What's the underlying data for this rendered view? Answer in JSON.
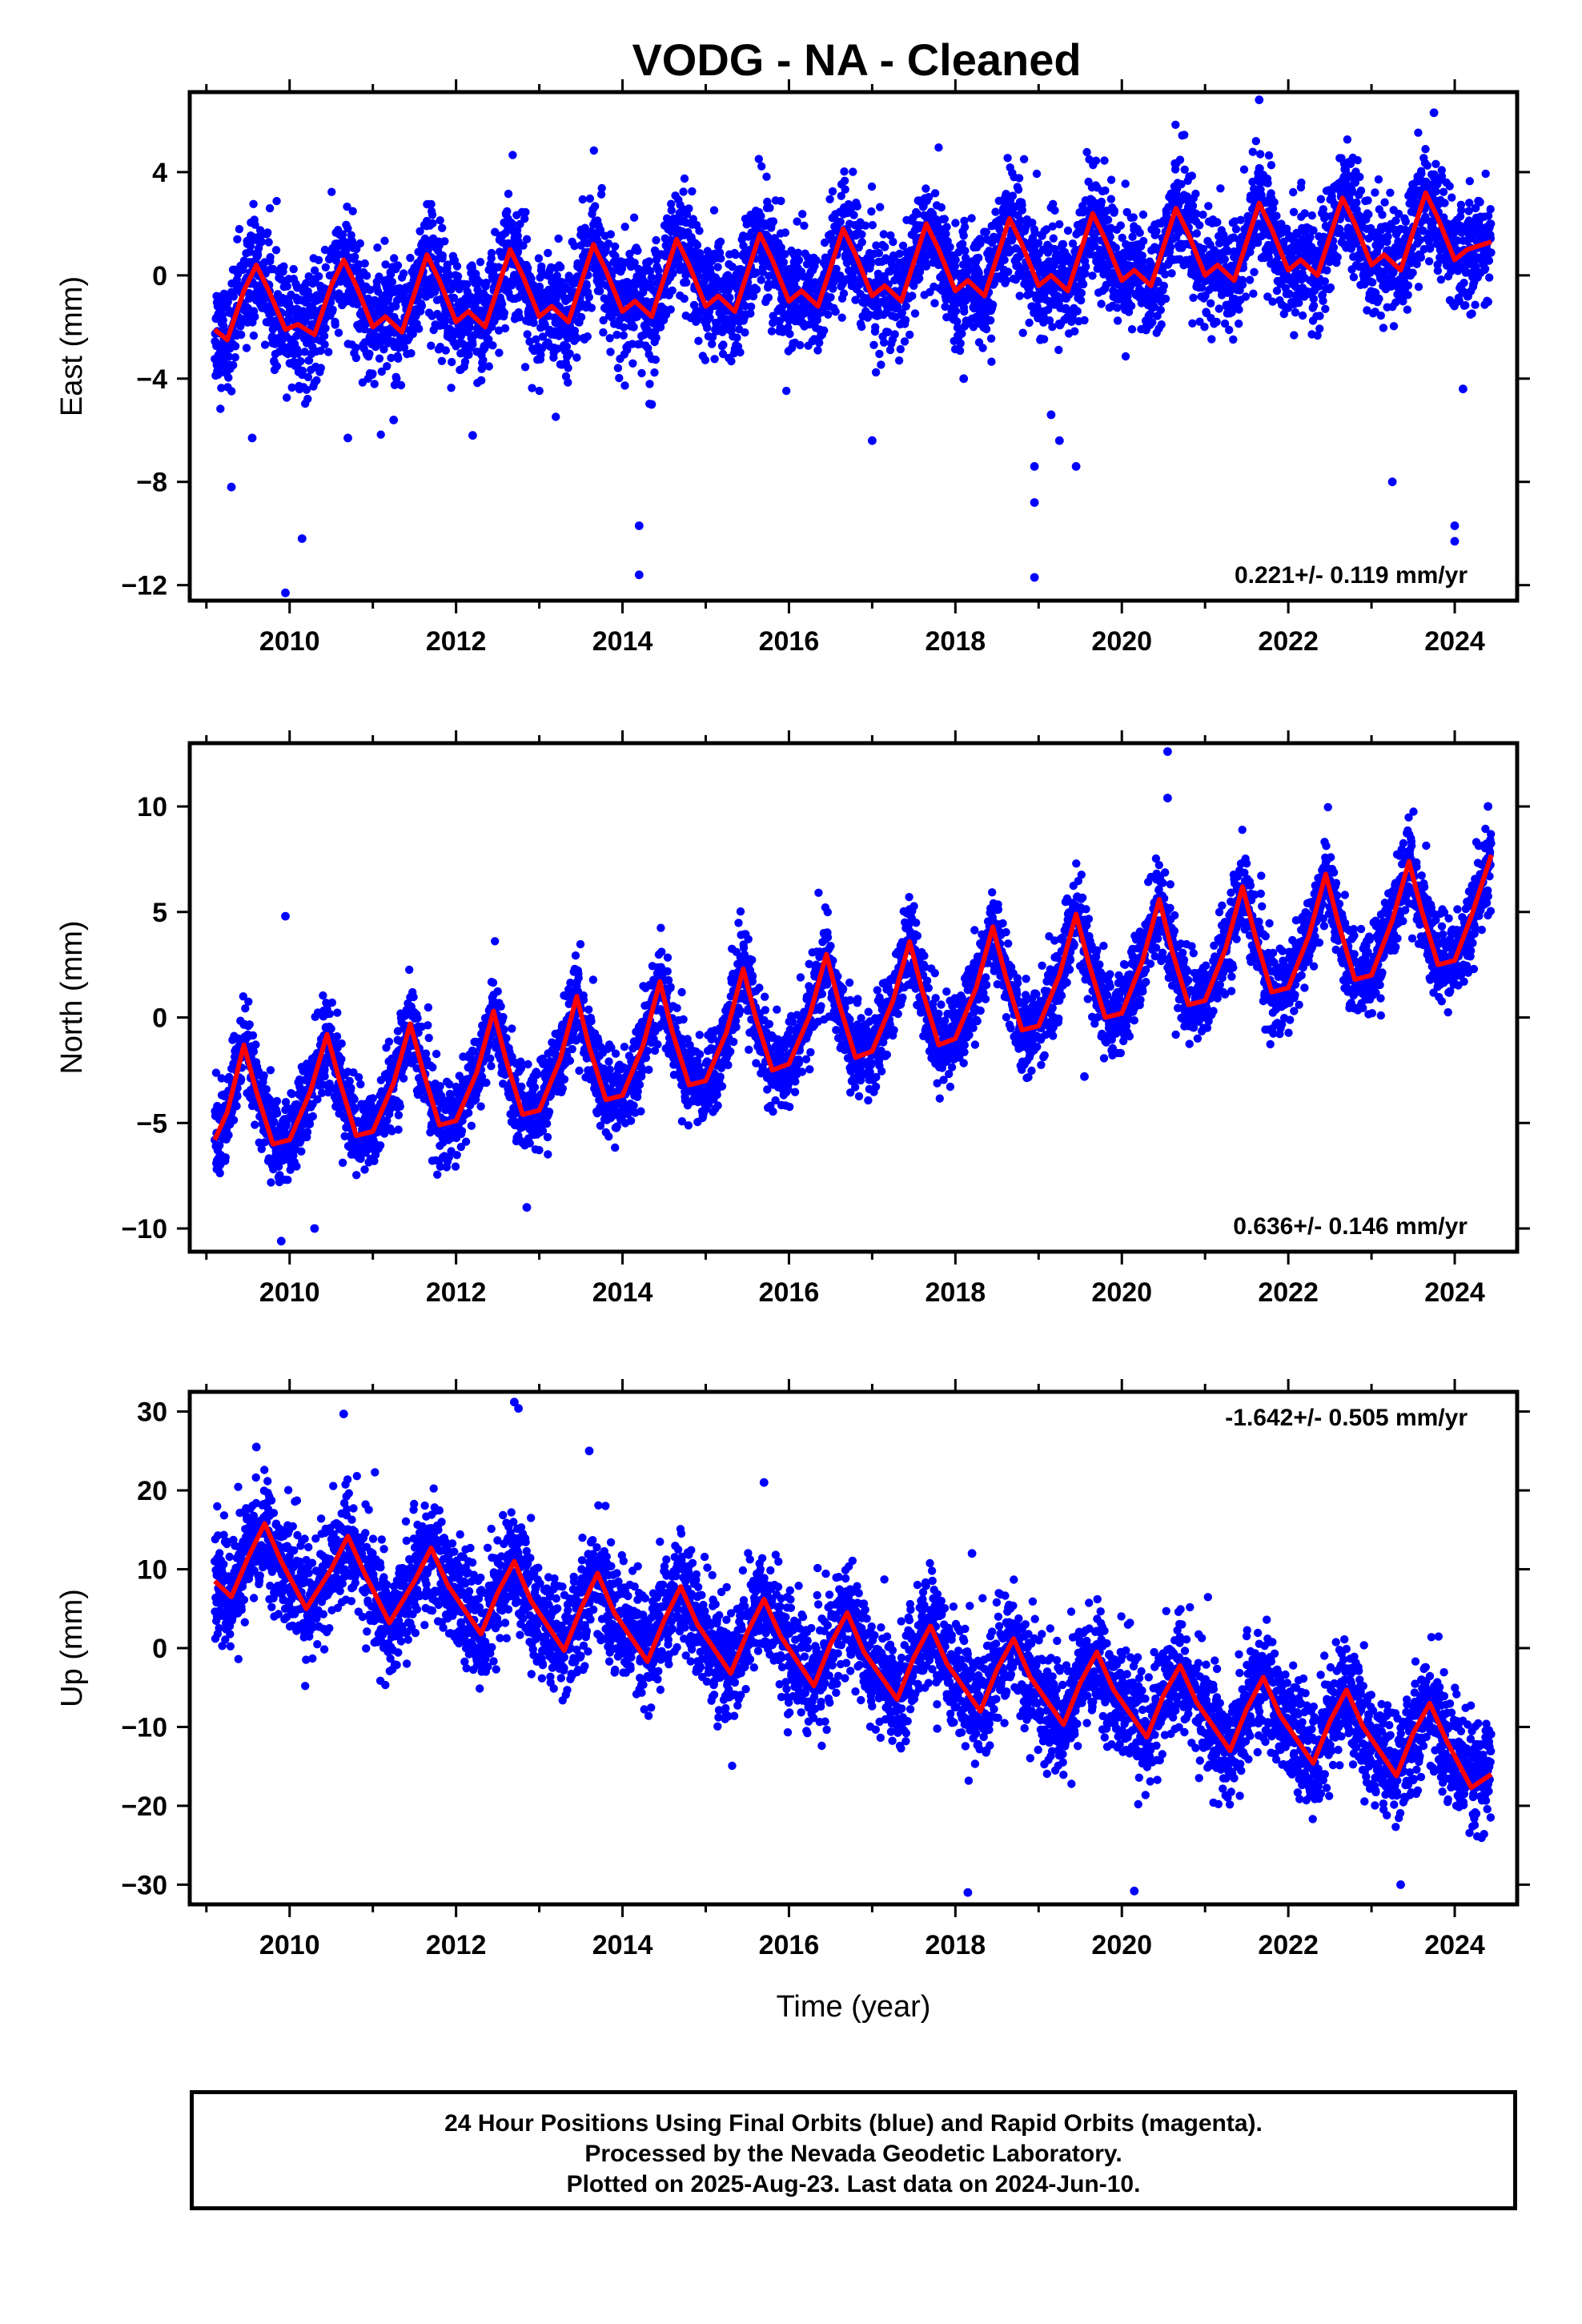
{
  "title": "VODG  - NA - Cleaned",
  "footer": {
    "line1": "24 Hour Positions Using Final Orbits (blue) and Rapid Orbits (magenta).",
    "line2": "Processed by the Nevada Geodetic Laboratory.",
    "line3": "Plotted on 2025-Aug-23. Last data on 2024-Jun-10."
  },
  "colors": {
    "points": "#0000ff",
    "model": "#ff0000",
    "axes": "#000000"
  },
  "chart_data": [
    {
      "type": "scatter",
      "component": "East",
      "ylabel": "East (mm)",
      "xlabel": "",
      "xlim": [
        2008.8,
        2024.75
      ],
      "ylim": [
        -12.6,
        7.1
      ],
      "yticks": [
        4,
        0,
        -4,
        -8,
        -12
      ],
      "ytick_labels": [
        "4",
        "0",
        "−4",
        "−8",
        "−12"
      ],
      "xticks": [
        2010,
        2012,
        2014,
        2016,
        2018,
        2020,
        2022,
        2024
      ],
      "grid": false,
      "rate_text": "0.221+/- 0.119 mm/yr",
      "rate_placement": "bottom-right",
      "x_start": 2009.1,
      "x_end": 2024.44,
      "model_curve": [
        [
          2009.1,
          -2.1
        ],
        [
          2009.25,
          -2.5
        ],
        [
          2009.45,
          -0.6
        ],
        [
          2009.6,
          0.4
        ],
        [
          2009.75,
          -0.6
        ],
        [
          2009.95,
          -2.1
        ],
        [
          2010.1,
          -1.9
        ],
        [
          2010.3,
          -2.3
        ],
        [
          2010.5,
          -0.4
        ],
        [
          2010.65,
          0.6
        ],
        [
          2010.8,
          -0.4
        ],
        [
          2011.0,
          -2.0
        ],
        [
          2011.15,
          -1.6
        ],
        [
          2011.35,
          -2.2
        ],
        [
          2011.55,
          -0.2
        ],
        [
          2011.65,
          0.8
        ],
        [
          2011.8,
          -0.2
        ],
        [
          2012.0,
          -1.8
        ],
        [
          2012.15,
          -1.4
        ],
        [
          2012.35,
          -2.0
        ],
        [
          2012.55,
          0.0
        ],
        [
          2012.65,
          1.0
        ],
        [
          2012.8,
          0.0
        ],
        [
          2013.0,
          -1.6
        ],
        [
          2013.15,
          -1.2
        ],
        [
          2013.35,
          -1.8
        ],
        [
          2013.55,
          0.2
        ],
        [
          2013.65,
          1.2
        ],
        [
          2013.8,
          0.2
        ],
        [
          2014.0,
          -1.4
        ],
        [
          2014.15,
          -1.0
        ],
        [
          2014.35,
          -1.6
        ],
        [
          2014.55,
          0.4
        ],
        [
          2014.65,
          1.4
        ],
        [
          2014.8,
          0.4
        ],
        [
          2015.0,
          -1.2
        ],
        [
          2015.15,
          -0.8
        ],
        [
          2015.35,
          -1.4
        ],
        [
          2015.55,
          0.6
        ],
        [
          2015.65,
          1.6
        ],
        [
          2015.8,
          0.6
        ],
        [
          2016.0,
          -1.0
        ],
        [
          2016.15,
          -0.6
        ],
        [
          2016.35,
          -1.2
        ],
        [
          2016.55,
          0.8
        ],
        [
          2016.65,
          1.8
        ],
        [
          2016.8,
          0.8
        ],
        [
          2017.0,
          -0.8
        ],
        [
          2017.15,
          -0.4
        ],
        [
          2017.35,
          -1.0
        ],
        [
          2017.55,
          1.0
        ],
        [
          2017.65,
          2.0
        ],
        [
          2017.8,
          1.0
        ],
        [
          2018.0,
          -0.6
        ],
        [
          2018.15,
          -0.2
        ],
        [
          2018.35,
          -0.8
        ],
        [
          2018.55,
          1.2
        ],
        [
          2018.65,
          2.2
        ],
        [
          2018.8,
          1.2
        ],
        [
          2019.0,
          -0.4
        ],
        [
          2019.15,
          0.0
        ],
        [
          2019.35,
          -0.6
        ],
        [
          2019.55,
          1.4
        ],
        [
          2019.65,
          2.4
        ],
        [
          2019.8,
          1.4
        ],
        [
          2020.0,
          -0.2
        ],
        [
          2020.15,
          0.2
        ],
        [
          2020.35,
          -0.4
        ],
        [
          2020.55,
          1.6
        ],
        [
          2020.65,
          2.6
        ],
        [
          2020.8,
          1.6
        ],
        [
          2021.0,
          0.0
        ],
        [
          2021.15,
          0.4
        ],
        [
          2021.35,
          -0.2
        ],
        [
          2021.55,
          1.8
        ],
        [
          2021.65,
          2.8
        ],
        [
          2021.8,
          1.8
        ],
        [
          2022.0,
          0.2
        ],
        [
          2022.15,
          0.6
        ],
        [
          2022.35,
          0.0
        ],
        [
          2022.55,
          2.0
        ],
        [
          2022.65,
          3.0
        ],
        [
          2022.8,
          2.0
        ],
        [
          2023.0,
          0.4
        ],
        [
          2023.15,
          0.8
        ],
        [
          2023.35,
          0.2
        ],
        [
          2023.55,
          2.2
        ],
        [
          2023.65,
          3.2
        ],
        [
          2023.8,
          2.2
        ],
        [
          2024.0,
          0.6
        ],
        [
          2024.15,
          1.0
        ],
        [
          2024.44,
          1.3
        ]
      ],
      "outliers": [
        [
          2009.3,
          -8.2
        ],
        [
          2009.55,
          -6.3
        ],
        [
          2009.95,
          -12.3
        ],
        [
          2010.15,
          -10.2
        ],
        [
          2010.7,
          -6.3
        ],
        [
          2011.25,
          -5.6
        ],
        [
          2012.2,
          -6.2
        ],
        [
          2014.2,
          -9.7
        ],
        [
          2014.2,
          -11.6
        ],
        [
          2014.35,
          -5.0
        ],
        [
          2017.0,
          -6.4
        ],
        [
          2018.1,
          -4.0
        ],
        [
          2018.95,
          -7.4
        ],
        [
          2018.95,
          -8.8
        ],
        [
          2018.95,
          -11.7
        ],
        [
          2019.15,
          -5.4
        ],
        [
          2019.25,
          -6.4
        ],
        [
          2019.45,
          -7.4
        ],
        [
          2023.25,
          -8.0
        ],
        [
          2023.75,
          6.3
        ],
        [
          2024.0,
          -9.7
        ],
        [
          2024.0,
          -10.3
        ],
        [
          2024.1,
          -4.4
        ],
        [
          2021.65,
          6.8
        ]
      ]
    },
    {
      "type": "scatter",
      "component": "North",
      "ylabel": "North (mm)",
      "xlabel": "",
      "xlim": [
        2008.8,
        2024.75
      ],
      "ylim": [
        -11.1,
        13.0
      ],
      "yticks": [
        10,
        5,
        0,
        -5,
        -10
      ],
      "ytick_labels": [
        "10",
        "5",
        "0",
        "−5",
        "−10"
      ],
      "xticks": [
        2010,
        2012,
        2014,
        2016,
        2018,
        2020,
        2022,
        2024
      ],
      "grid": false,
      "rate_text": "0.636+/- 0.146 mm/yr",
      "rate_placement": "bottom-right",
      "x_start": 2009.1,
      "x_end": 2024.44,
      "model_curve": [
        [
          2009.1,
          -5.8
        ],
        [
          2009.25,
          -4.5
        ],
        [
          2009.45,
          -1.3
        ],
        [
          2009.6,
          -3.5
        ],
        [
          2009.8,
          -6.0
        ],
        [
          2010.0,
          -5.8
        ],
        [
          2010.25,
          -3.5
        ],
        [
          2010.45,
          -0.8
        ],
        [
          2010.6,
          -3.0
        ],
        [
          2010.8,
          -5.6
        ],
        [
          2011.0,
          -5.4
        ],
        [
          2011.25,
          -3.1
        ],
        [
          2011.45,
          -0.3
        ],
        [
          2011.6,
          -2.5
        ],
        [
          2011.8,
          -5.1
        ],
        [
          2012.0,
          -4.9
        ],
        [
          2012.25,
          -2.6
        ],
        [
          2012.45,
          0.3
        ],
        [
          2012.6,
          -2.0
        ],
        [
          2012.8,
          -4.6
        ],
        [
          2013.0,
          -4.4
        ],
        [
          2013.25,
          -2.0
        ],
        [
          2013.45,
          1.0
        ],
        [
          2013.6,
          -1.4
        ],
        [
          2013.8,
          -3.9
        ],
        [
          2014.0,
          -3.7
        ],
        [
          2014.25,
          -1.3
        ],
        [
          2014.45,
          1.7
        ],
        [
          2014.6,
          -0.7
        ],
        [
          2014.8,
          -3.2
        ],
        [
          2015.0,
          -3.0
        ],
        [
          2015.25,
          -0.7
        ],
        [
          2015.45,
          2.3
        ],
        [
          2015.6,
          0.0
        ],
        [
          2015.8,
          -2.5
        ],
        [
          2016.0,
          -2.2
        ],
        [
          2016.25,
          0.1
        ],
        [
          2016.45,
          3.0
        ],
        [
          2016.6,
          0.7
        ],
        [
          2016.8,
          -1.9
        ],
        [
          2017.0,
          -1.6
        ],
        [
          2017.25,
          0.8
        ],
        [
          2017.45,
          3.6
        ],
        [
          2017.6,
          1.3
        ],
        [
          2017.8,
          -1.3
        ],
        [
          2018.0,
          -1.0
        ],
        [
          2018.25,
          1.4
        ],
        [
          2018.45,
          4.3
        ],
        [
          2018.6,
          2.0
        ],
        [
          2018.8,
          -0.6
        ],
        [
          2019.0,
          -0.4
        ],
        [
          2019.25,
          2.0
        ],
        [
          2019.45,
          4.9
        ],
        [
          2019.6,
          2.6
        ],
        [
          2019.8,
          0.0
        ],
        [
          2020.0,
          0.2
        ],
        [
          2020.25,
          2.7
        ],
        [
          2020.45,
          5.6
        ],
        [
          2020.6,
          3.2
        ],
        [
          2020.8,
          0.6
        ],
        [
          2021.0,
          0.8
        ],
        [
          2021.25,
          3.3
        ],
        [
          2021.45,
          6.2
        ],
        [
          2021.6,
          3.9
        ],
        [
          2021.8,
          1.2
        ],
        [
          2022.0,
          1.4
        ],
        [
          2022.25,
          3.9
        ],
        [
          2022.45,
          6.8
        ],
        [
          2022.6,
          4.5
        ],
        [
          2022.8,
          1.8
        ],
        [
          2023.0,
          2.0
        ],
        [
          2023.25,
          4.6
        ],
        [
          2023.45,
          7.4
        ],
        [
          2023.6,
          5.1
        ],
        [
          2023.8,
          2.5
        ],
        [
          2024.0,
          2.7
        ],
        [
          2024.2,
          4.8
        ],
        [
          2024.44,
          7.7
        ]
      ],
      "outliers": [
        [
          2009.95,
          4.8
        ],
        [
          2009.9,
          -10.6
        ],
        [
          2010.3,
          -10.0
        ],
        [
          2012.85,
          -9.0
        ],
        [
          2020.55,
          12.6
        ],
        [
          2020.55,
          10.4
        ],
        [
          2019.55,
          -2.8
        ],
        [
          2024.4,
          10.0
        ]
      ]
    },
    {
      "type": "scatter",
      "component": "Up",
      "ylabel": "Up (mm)",
      "xlabel": "Time (year)",
      "xlim": [
        2008.8,
        2024.75
      ],
      "ylim": [
        -32.5,
        32.5
      ],
      "yticks": [
        30,
        20,
        10,
        0,
        -10,
        -20,
        -30
      ],
      "ytick_labels": [
        "30",
        "20",
        "10",
        "0",
        "−10",
        "−20",
        "−30"
      ],
      "xticks": [
        2010,
        2012,
        2014,
        2016,
        2018,
        2020,
        2022,
        2024
      ],
      "grid": false,
      "rate_text": "-1.642+/- 0.505 mm/yr",
      "rate_placement": "top-right",
      "x_start": 2009.1,
      "x_end": 2024.44,
      "model_curve": [
        [
          2009.1,
          8.5
        ],
        [
          2009.3,
          6.5
        ],
        [
          2009.5,
          11.5
        ],
        [
          2009.7,
          15.8
        ],
        [
          2009.9,
          11.0
        ],
        [
          2010.2,
          5.0
        ],
        [
          2010.5,
          10.0
        ],
        [
          2010.7,
          14.2
        ],
        [
          2010.9,
          9.5
        ],
        [
          2011.2,
          3.2
        ],
        [
          2011.5,
          8.5
        ],
        [
          2011.7,
          12.7
        ],
        [
          2011.9,
          8.0
        ],
        [
          2012.3,
          1.8
        ],
        [
          2012.5,
          7.0
        ],
        [
          2012.7,
          11.0
        ],
        [
          2012.9,
          6.0
        ],
        [
          2013.3,
          -0.3
        ],
        [
          2013.5,
          5.0
        ],
        [
          2013.7,
          9.5
        ],
        [
          2013.9,
          4.5
        ],
        [
          2014.3,
          -1.7
        ],
        [
          2014.5,
          3.5
        ],
        [
          2014.7,
          7.8
        ],
        [
          2014.9,
          3.0
        ],
        [
          2015.3,
          -3.2
        ],
        [
          2015.5,
          2.0
        ],
        [
          2015.7,
          6.2
        ],
        [
          2015.9,
          1.5
        ],
        [
          2016.3,
          -4.8
        ],
        [
          2016.5,
          0.5
        ],
        [
          2016.7,
          4.5
        ],
        [
          2016.9,
          -0.5
        ],
        [
          2017.3,
          -6.5
        ],
        [
          2017.5,
          -1.2
        ],
        [
          2017.7,
          2.8
        ],
        [
          2017.9,
          -2.0
        ],
        [
          2018.3,
          -8.0
        ],
        [
          2018.5,
          -2.7
        ],
        [
          2018.7,
          1.2
        ],
        [
          2018.9,
          -3.7
        ],
        [
          2019.3,
          -9.7
        ],
        [
          2019.5,
          -4.4
        ],
        [
          2019.7,
          -0.5
        ],
        [
          2019.9,
          -5.3
        ],
        [
          2020.3,
          -11.3
        ],
        [
          2020.5,
          -6.0
        ],
        [
          2020.7,
          -2.2
        ],
        [
          2020.9,
          -6.9
        ],
        [
          2021.3,
          -13.0
        ],
        [
          2021.5,
          -7.7
        ],
        [
          2021.7,
          -3.7
        ],
        [
          2021.9,
          -8.5
        ],
        [
          2022.3,
          -14.6
        ],
        [
          2022.5,
          -9.3
        ],
        [
          2022.7,
          -5.3
        ],
        [
          2022.9,
          -10.0
        ],
        [
          2023.3,
          -16.2
        ],
        [
          2023.5,
          -10.8
        ],
        [
          2023.7,
          -7.0
        ],
        [
          2023.9,
          -11.7
        ],
        [
          2024.2,
          -17.7
        ],
        [
          2024.44,
          -16.0
        ]
      ],
      "outliers": [
        [
          2012.7,
          31.2
        ],
        [
          2012.75,
          30.4
        ],
        [
          2018.15,
          -31.0
        ],
        [
          2020.15,
          -30.8
        ],
        [
          2023.35,
          -30.0
        ],
        [
          2010.65,
          29.7
        ],
        [
          2009.6,
          25.5
        ],
        [
          2013.6,
          25.0
        ],
        [
          2015.7,
          21.0
        ],
        [
          2018.2,
          12.0
        ]
      ]
    }
  ]
}
